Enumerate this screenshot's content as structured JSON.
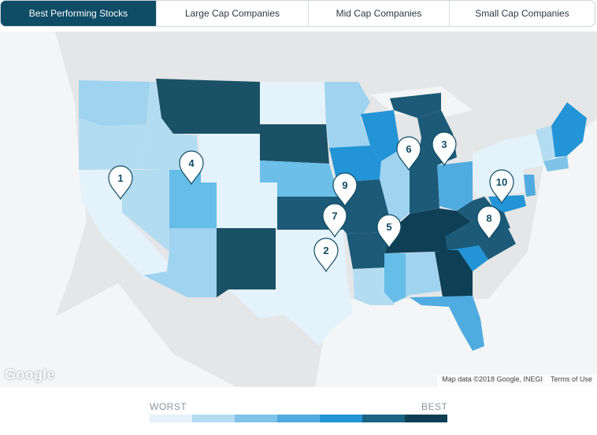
{
  "tabs": [
    {
      "label": "Best Performing Stocks",
      "active": true
    },
    {
      "label": "Large Cap Companies",
      "active": false
    },
    {
      "label": "Mid Cap Companies",
      "active": false
    },
    {
      "label": "Small Cap Companies",
      "active": false
    }
  ],
  "map": {
    "pins": [
      "1",
      "2",
      "3",
      "4",
      "5",
      "6",
      "7",
      "8",
      "9",
      "10"
    ],
    "attribution": {
      "map_data": "Map data ©2018 Google, INEGI",
      "terms": "Terms of Use"
    },
    "logo": "Google"
  },
  "legend": {
    "worst_label": "WORST",
    "best_label": "BEST",
    "colors": [
      "#e4f2fb",
      "#b4dcf1",
      "#80c3e8",
      "#50abe0",
      "#2394d6",
      "#1a6383",
      "#0e3f55"
    ]
  },
  "colors": {
    "tab_active": "#0f4c66",
    "land": "#e6e7e8",
    "water": "#f5f6f7"
  }
}
